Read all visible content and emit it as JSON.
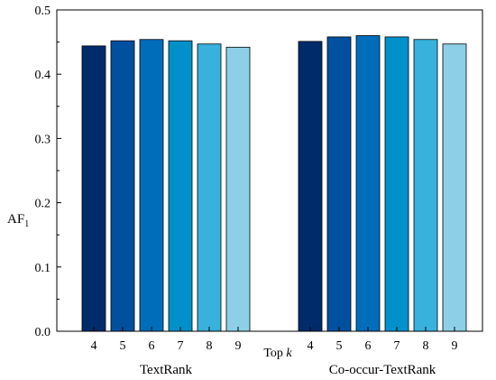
{
  "chart_data": {
    "type": "bar",
    "ylabel": "AF",
    "ylabel_subscript": "1",
    "x_center_label_prefix": "Top ",
    "x_center_label_italic": "k",
    "ylim": [
      0,
      0.5
    ],
    "yticks": [
      "0.0",
      "0.1",
      "0.2",
      "0.3",
      "0.4",
      "0.5"
    ],
    "grid": false,
    "bar_colors": [
      "#002b6b",
      "#0050a0",
      "#006dbb",
      "#0091cb",
      "#38b2dc",
      "#8ecfe8"
    ],
    "groups": [
      {
        "name": "TextRank",
        "categories": [
          "4",
          "5",
          "6",
          "7",
          "8",
          "9"
        ],
        "values": [
          0.444,
          0.452,
          0.454,
          0.452,
          0.447,
          0.442
        ]
      },
      {
        "name": "Co-occur-TextRank",
        "categories": [
          "4",
          "5",
          "6",
          "7",
          "8",
          "9"
        ],
        "values": [
          0.451,
          0.458,
          0.46,
          0.458,
          0.454,
          0.447
        ]
      }
    ]
  }
}
